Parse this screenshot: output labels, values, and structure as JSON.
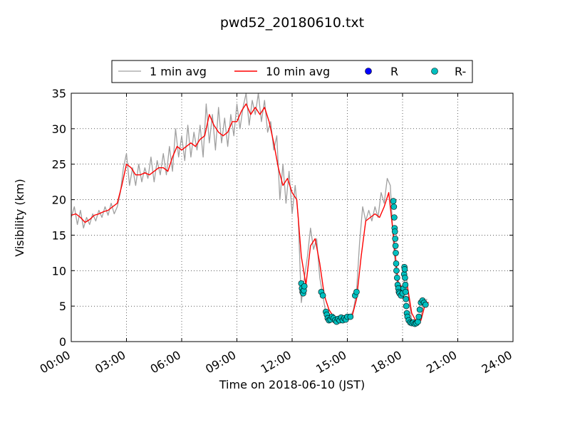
{
  "chart_data": {
    "type": "line",
    "title": "pwd52_20180610.txt",
    "xlabel": "Time on 2018-06-10 (JST)",
    "ylabel": "Visibility (km)",
    "xlim": [
      "00:00",
      "24:00"
    ],
    "ylim": [
      0,
      35
    ],
    "x_ticks": [
      "00:00",
      "03:00",
      "06:00",
      "09:00",
      "12:00",
      "15:00",
      "18:00",
      "21:00",
      "24:00"
    ],
    "y_ticks": [
      "0",
      "5",
      "10",
      "15",
      "20",
      "25",
      "30",
      "35"
    ],
    "grid": true,
    "legend_position": "top-center, above plot",
    "legend": [
      "1 min avg",
      "10 min avg",
      "R",
      "R-"
    ],
    "colors": {
      "one_min": "#a0a0a0",
      "ten_min": "#ff0000",
      "R": "#0000ff",
      "R_minus": "#00bfbf"
    },
    "series": [
      {
        "name": "1 min avg",
        "kind": "line",
        "points": [
          [
            "00:00",
            17.5
          ],
          [
            "00:10",
            19.0
          ],
          [
            "00:20",
            16.5
          ],
          [
            "00:30",
            18.5
          ],
          [
            "00:40",
            16.0
          ],
          [
            "00:50",
            17.5
          ],
          [
            "01:00",
            16.5
          ],
          [
            "01:10",
            18.0
          ],
          [
            "01:20",
            17.0
          ],
          [
            "01:30",
            18.5
          ],
          [
            "01:40",
            17.5
          ],
          [
            "01:50",
            19.0
          ],
          [
            "02:00",
            17.8
          ],
          [
            "02:10",
            19.5
          ],
          [
            "02:20",
            18.0
          ],
          [
            "02:30",
            19.0
          ],
          [
            "02:40",
            21.0
          ],
          [
            "02:50",
            24.5
          ],
          [
            "03:00",
            26.5
          ],
          [
            "03:10",
            22.0
          ],
          [
            "03:20",
            24.5
          ],
          [
            "03:30",
            22.0
          ],
          [
            "03:40",
            25.0
          ],
          [
            "03:50",
            22.5
          ],
          [
            "04:00",
            24.5
          ],
          [
            "04:10",
            23.0
          ],
          [
            "04:20",
            26.0
          ],
          [
            "04:30",
            22.5
          ],
          [
            "04:40",
            25.5
          ],
          [
            "04:50",
            23.5
          ],
          [
            "05:00",
            26.5
          ],
          [
            "05:10",
            23.5
          ],
          [
            "05:20",
            27.5
          ],
          [
            "05:30",
            24.0
          ],
          [
            "05:40",
            30.0
          ],
          [
            "05:50",
            26.0
          ],
          [
            "06:00",
            29.0
          ],
          [
            "06:10",
            25.5
          ],
          [
            "06:20",
            30.5
          ],
          [
            "06:30",
            26.0
          ],
          [
            "06:40",
            29.5
          ],
          [
            "06:50",
            27.0
          ],
          [
            "07:00",
            30.5
          ],
          [
            "07:10",
            26.0
          ],
          [
            "07:20",
            33.5
          ],
          [
            "07:30",
            28.0
          ],
          [
            "07:40",
            32.0
          ],
          [
            "07:50",
            27.0
          ],
          [
            "08:00",
            33.0
          ],
          [
            "08:10",
            28.0
          ],
          [
            "08:20",
            31.5
          ],
          [
            "08:30",
            27.5
          ],
          [
            "08:40",
            32.0
          ],
          [
            "08:50",
            29.0
          ],
          [
            "09:00",
            33.5
          ],
          [
            "09:10",
            30.0
          ],
          [
            "09:20",
            33.0
          ],
          [
            "09:30",
            35.0
          ],
          [
            "09:40",
            30.5
          ],
          [
            "09:50",
            34.0
          ],
          [
            "10:00",
            32.0
          ],
          [
            "10:10",
            35.0
          ],
          [
            "10:20",
            31.0
          ],
          [
            "10:30",
            34.0
          ],
          [
            "10:40",
            29.5
          ],
          [
            "10:50",
            31.0
          ],
          [
            "11:00",
            27.0
          ],
          [
            "11:10",
            29.0
          ],
          [
            "11:20",
            20.0
          ],
          [
            "11:30",
            25.0
          ],
          [
            "11:40",
            19.5
          ],
          [
            "11:50",
            24.0
          ],
          [
            "12:00",
            18.0
          ],
          [
            "12:10",
            22.0
          ],
          [
            "12:20",
            17.5
          ],
          [
            "12:30",
            5.5
          ],
          [
            "12:40",
            9.0
          ],
          [
            "12:50",
            12.0
          ],
          [
            "13:00",
            16.0
          ],
          [
            "13:10",
            13.0
          ],
          [
            "13:20",
            14.5
          ],
          [
            "13:30",
            9.0
          ],
          [
            "13:40",
            6.5
          ],
          [
            "13:50",
            4.0
          ],
          [
            "14:00",
            3.5
          ],
          [
            "14:10",
            3.0
          ],
          [
            "14:20",
            2.8
          ],
          [
            "14:30",
            3.5
          ],
          [
            "14:40",
            3.0
          ],
          [
            "14:50",
            3.2
          ],
          [
            "15:00",
            3.0
          ],
          [
            "15:10",
            3.5
          ],
          [
            "15:20",
            4.5
          ],
          [
            "15:30",
            7.0
          ],
          [
            "15:40",
            14.0
          ],
          [
            "15:50",
            19.0
          ],
          [
            "16:00",
            17.0
          ],
          [
            "16:10",
            18.5
          ],
          [
            "16:20",
            17.0
          ],
          [
            "16:30",
            19.0
          ],
          [
            "16:40",
            17.5
          ],
          [
            "16:50",
            21.0
          ],
          [
            "17:00",
            19.5
          ],
          [
            "17:10",
            23.0
          ],
          [
            "17:20",
            22.0
          ],
          [
            "17:30",
            14.0
          ],
          [
            "17:40",
            9.0
          ],
          [
            "17:50",
            7.0
          ],
          [
            "18:00",
            6.5
          ],
          [
            "18:10",
            10.5
          ],
          [
            "18:20",
            6.0
          ],
          [
            "18:30",
            3.0
          ],
          [
            "18:40",
            2.5
          ],
          [
            "18:50",
            2.8
          ],
          [
            "19:00",
            3.5
          ],
          [
            "19:10",
            5.5
          ],
          [
            "19:20",
            6.0
          ]
        ]
      },
      {
        "name": "10 min avg",
        "kind": "line",
        "points": [
          [
            "00:00",
            17.8
          ],
          [
            "00:15",
            18.0
          ],
          [
            "00:30",
            17.5
          ],
          [
            "00:45",
            16.8
          ],
          [
            "01:00",
            17.2
          ],
          [
            "01:15",
            17.8
          ],
          [
            "01:30",
            18.0
          ],
          [
            "01:45",
            18.3
          ],
          [
            "02:00",
            18.5
          ],
          [
            "02:15",
            19.0
          ],
          [
            "02:30",
            19.5
          ],
          [
            "02:45",
            22.0
          ],
          [
            "03:00",
            25.0
          ],
          [
            "03:15",
            24.5
          ],
          [
            "03:30",
            23.5
          ],
          [
            "03:45",
            23.5
          ],
          [
            "04:00",
            23.8
          ],
          [
            "04:15",
            23.5
          ],
          [
            "04:30",
            24.0
          ],
          [
            "04:45",
            24.5
          ],
          [
            "05:00",
            24.5
          ],
          [
            "05:15",
            24.0
          ],
          [
            "05:30",
            26.0
          ],
          [
            "05:45",
            27.5
          ],
          [
            "06:00",
            27.0
          ],
          [
            "06:15",
            27.5
          ],
          [
            "06:30",
            28.0
          ],
          [
            "06:45",
            27.5
          ],
          [
            "07:00",
            28.5
          ],
          [
            "07:15",
            29.0
          ],
          [
            "07:30",
            32.0
          ],
          [
            "07:45",
            30.5
          ],
          [
            "08:00",
            29.5
          ],
          [
            "08:15",
            29.0
          ],
          [
            "08:30",
            29.5
          ],
          [
            "08:45",
            31.0
          ],
          [
            "09:00",
            31.0
          ],
          [
            "09:15",
            32.5
          ],
          [
            "09:30",
            33.5
          ],
          [
            "09:45",
            32.0
          ],
          [
            "10:00",
            33.0
          ],
          [
            "10:15",
            32.0
          ],
          [
            "10:30",
            33.0
          ],
          [
            "10:45",
            31.0
          ],
          [
            "11:00",
            28.0
          ],
          [
            "11:15",
            24.5
          ],
          [
            "11:30",
            22.0
          ],
          [
            "11:45",
            23.0
          ],
          [
            "12:00",
            21.0
          ],
          [
            "12:15",
            20.0
          ],
          [
            "12:30",
            12.0
          ],
          [
            "12:45",
            8.0
          ],
          [
            "13:00",
            13.5
          ],
          [
            "13:15",
            14.5
          ],
          [
            "13:30",
            11.0
          ],
          [
            "13:45",
            6.5
          ],
          [
            "14:00",
            4.5
          ],
          [
            "14:15",
            3.5
          ],
          [
            "14:30",
            3.2
          ],
          [
            "14:45",
            3.0
          ],
          [
            "15:00",
            3.2
          ],
          [
            "15:15",
            3.5
          ],
          [
            "15:30",
            6.0
          ],
          [
            "15:45",
            12.0
          ],
          [
            "16:00",
            17.0
          ],
          [
            "16:15",
            17.5
          ],
          [
            "16:30",
            18.0
          ],
          [
            "16:45",
            17.5
          ],
          [
            "17:00",
            19.0
          ],
          [
            "17:15",
            21.0
          ],
          [
            "17:30",
            15.0
          ],
          [
            "17:45",
            8.5
          ],
          [
            "18:00",
            7.5
          ],
          [
            "18:15",
            8.0
          ],
          [
            "18:30",
            4.0
          ],
          [
            "18:45",
            2.8
          ],
          [
            "19:00",
            3.0
          ],
          [
            "19:15",
            5.5
          ],
          [
            "19:25",
            5.5
          ]
        ]
      },
      {
        "name": "R",
        "kind": "scatter",
        "points": []
      },
      {
        "name": "R-",
        "kind": "scatter",
        "points": [
          [
            "12:30",
            8.2
          ],
          [
            "12:32",
            7.5
          ],
          [
            "12:34",
            7.0
          ],
          [
            "12:36",
            6.8
          ],
          [
            "12:38",
            7.2
          ],
          [
            "12:40",
            7.8
          ],
          [
            "13:35",
            7.0
          ],
          [
            "13:40",
            6.5
          ],
          [
            "13:50",
            4.2
          ],
          [
            "13:53",
            3.8
          ],
          [
            "13:56",
            3.3
          ],
          [
            "14:00",
            3.0
          ],
          [
            "14:05",
            3.1
          ],
          [
            "14:10",
            3.5
          ],
          [
            "14:15",
            3.3
          ],
          [
            "14:20",
            3.0
          ],
          [
            "14:25",
            2.8
          ],
          [
            "14:30",
            3.2
          ],
          [
            "14:35",
            3.0
          ],
          [
            "14:40",
            3.4
          ],
          [
            "14:45",
            3.0
          ],
          [
            "14:50",
            3.3
          ],
          [
            "14:55",
            3.1
          ],
          [
            "15:00",
            3.5
          ],
          [
            "15:10",
            3.5
          ],
          [
            "15:25",
            6.5
          ],
          [
            "15:30",
            7.0
          ],
          [
            "17:30",
            19.8
          ],
          [
            "17:32",
            19.0
          ],
          [
            "17:33",
            17.5
          ],
          [
            "17:34",
            16.0
          ],
          [
            "17:35",
            15.5
          ],
          [
            "17:36",
            14.5
          ],
          [
            "17:37",
            13.5
          ],
          [
            "17:38",
            12.5
          ],
          [
            "17:39",
            11.0
          ],
          [
            "17:40",
            10.0
          ],
          [
            "17:42",
            9.0
          ],
          [
            "17:44",
            8.0
          ],
          [
            "17:46",
            7.5
          ],
          [
            "17:48",
            7.0
          ],
          [
            "17:50",
            6.8
          ],
          [
            "17:55",
            6.5
          ],
          [
            "18:00",
            6.8
          ],
          [
            "18:03",
            7.5
          ],
          [
            "18:05",
            9.5
          ],
          [
            "18:06",
            10.5
          ],
          [
            "18:07",
            10.2
          ],
          [
            "18:08",
            9.0
          ],
          [
            "18:09",
            8.0
          ],
          [
            "18:10",
            7.0
          ],
          [
            "18:11",
            6.0
          ],
          [
            "18:12",
            5.0
          ],
          [
            "18:14",
            4.0
          ],
          [
            "18:16",
            3.5
          ],
          [
            "18:20",
            3.0
          ],
          [
            "18:25",
            2.7
          ],
          [
            "18:30",
            2.6
          ],
          [
            "18:35",
            2.7
          ],
          [
            "18:40",
            2.5
          ],
          [
            "18:45",
            2.6
          ],
          [
            "18:50",
            2.8
          ],
          [
            "18:53",
            3.5
          ],
          [
            "18:56",
            4.5
          ],
          [
            "19:00",
            5.5
          ],
          [
            "19:05",
            5.8
          ],
          [
            "19:10",
            5.5
          ],
          [
            "19:15",
            5.2
          ]
        ]
      }
    ]
  }
}
